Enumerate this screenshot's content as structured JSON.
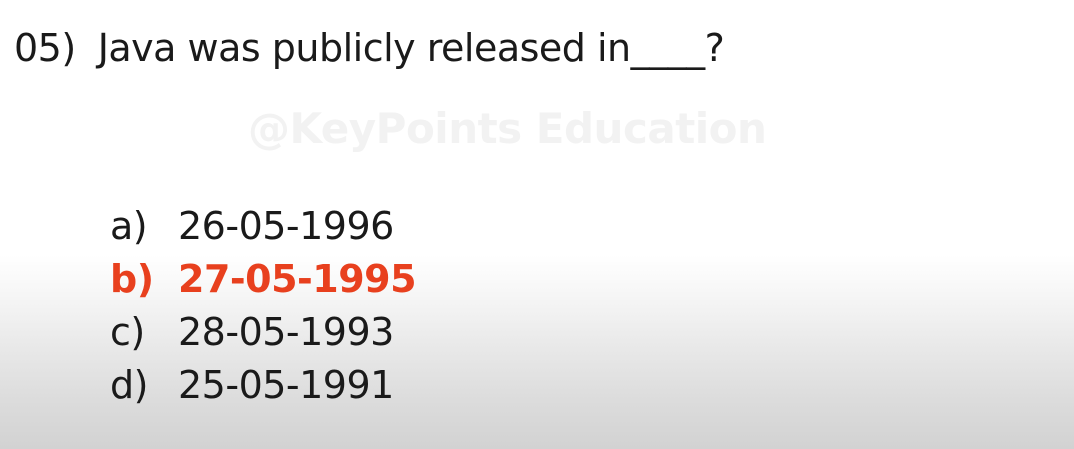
{
  "question": {
    "number": "05)",
    "text": "Java was publicly released in____?"
  },
  "watermark": "@KeyPoints Education",
  "options": [
    {
      "letter": "a)",
      "text": "26-05-1996",
      "correct": false
    },
    {
      "letter": "b)",
      "text": "27-05-1995",
      "correct": true
    },
    {
      "letter": "c)",
      "text": "28-05-1993",
      "correct": false
    },
    {
      "letter": "d)",
      "text": "25-05-1991",
      "correct": false
    }
  ],
  "colors": {
    "text": "#1a1a1a",
    "correct": "#e8401e",
    "watermark": "#f2f2f2"
  }
}
